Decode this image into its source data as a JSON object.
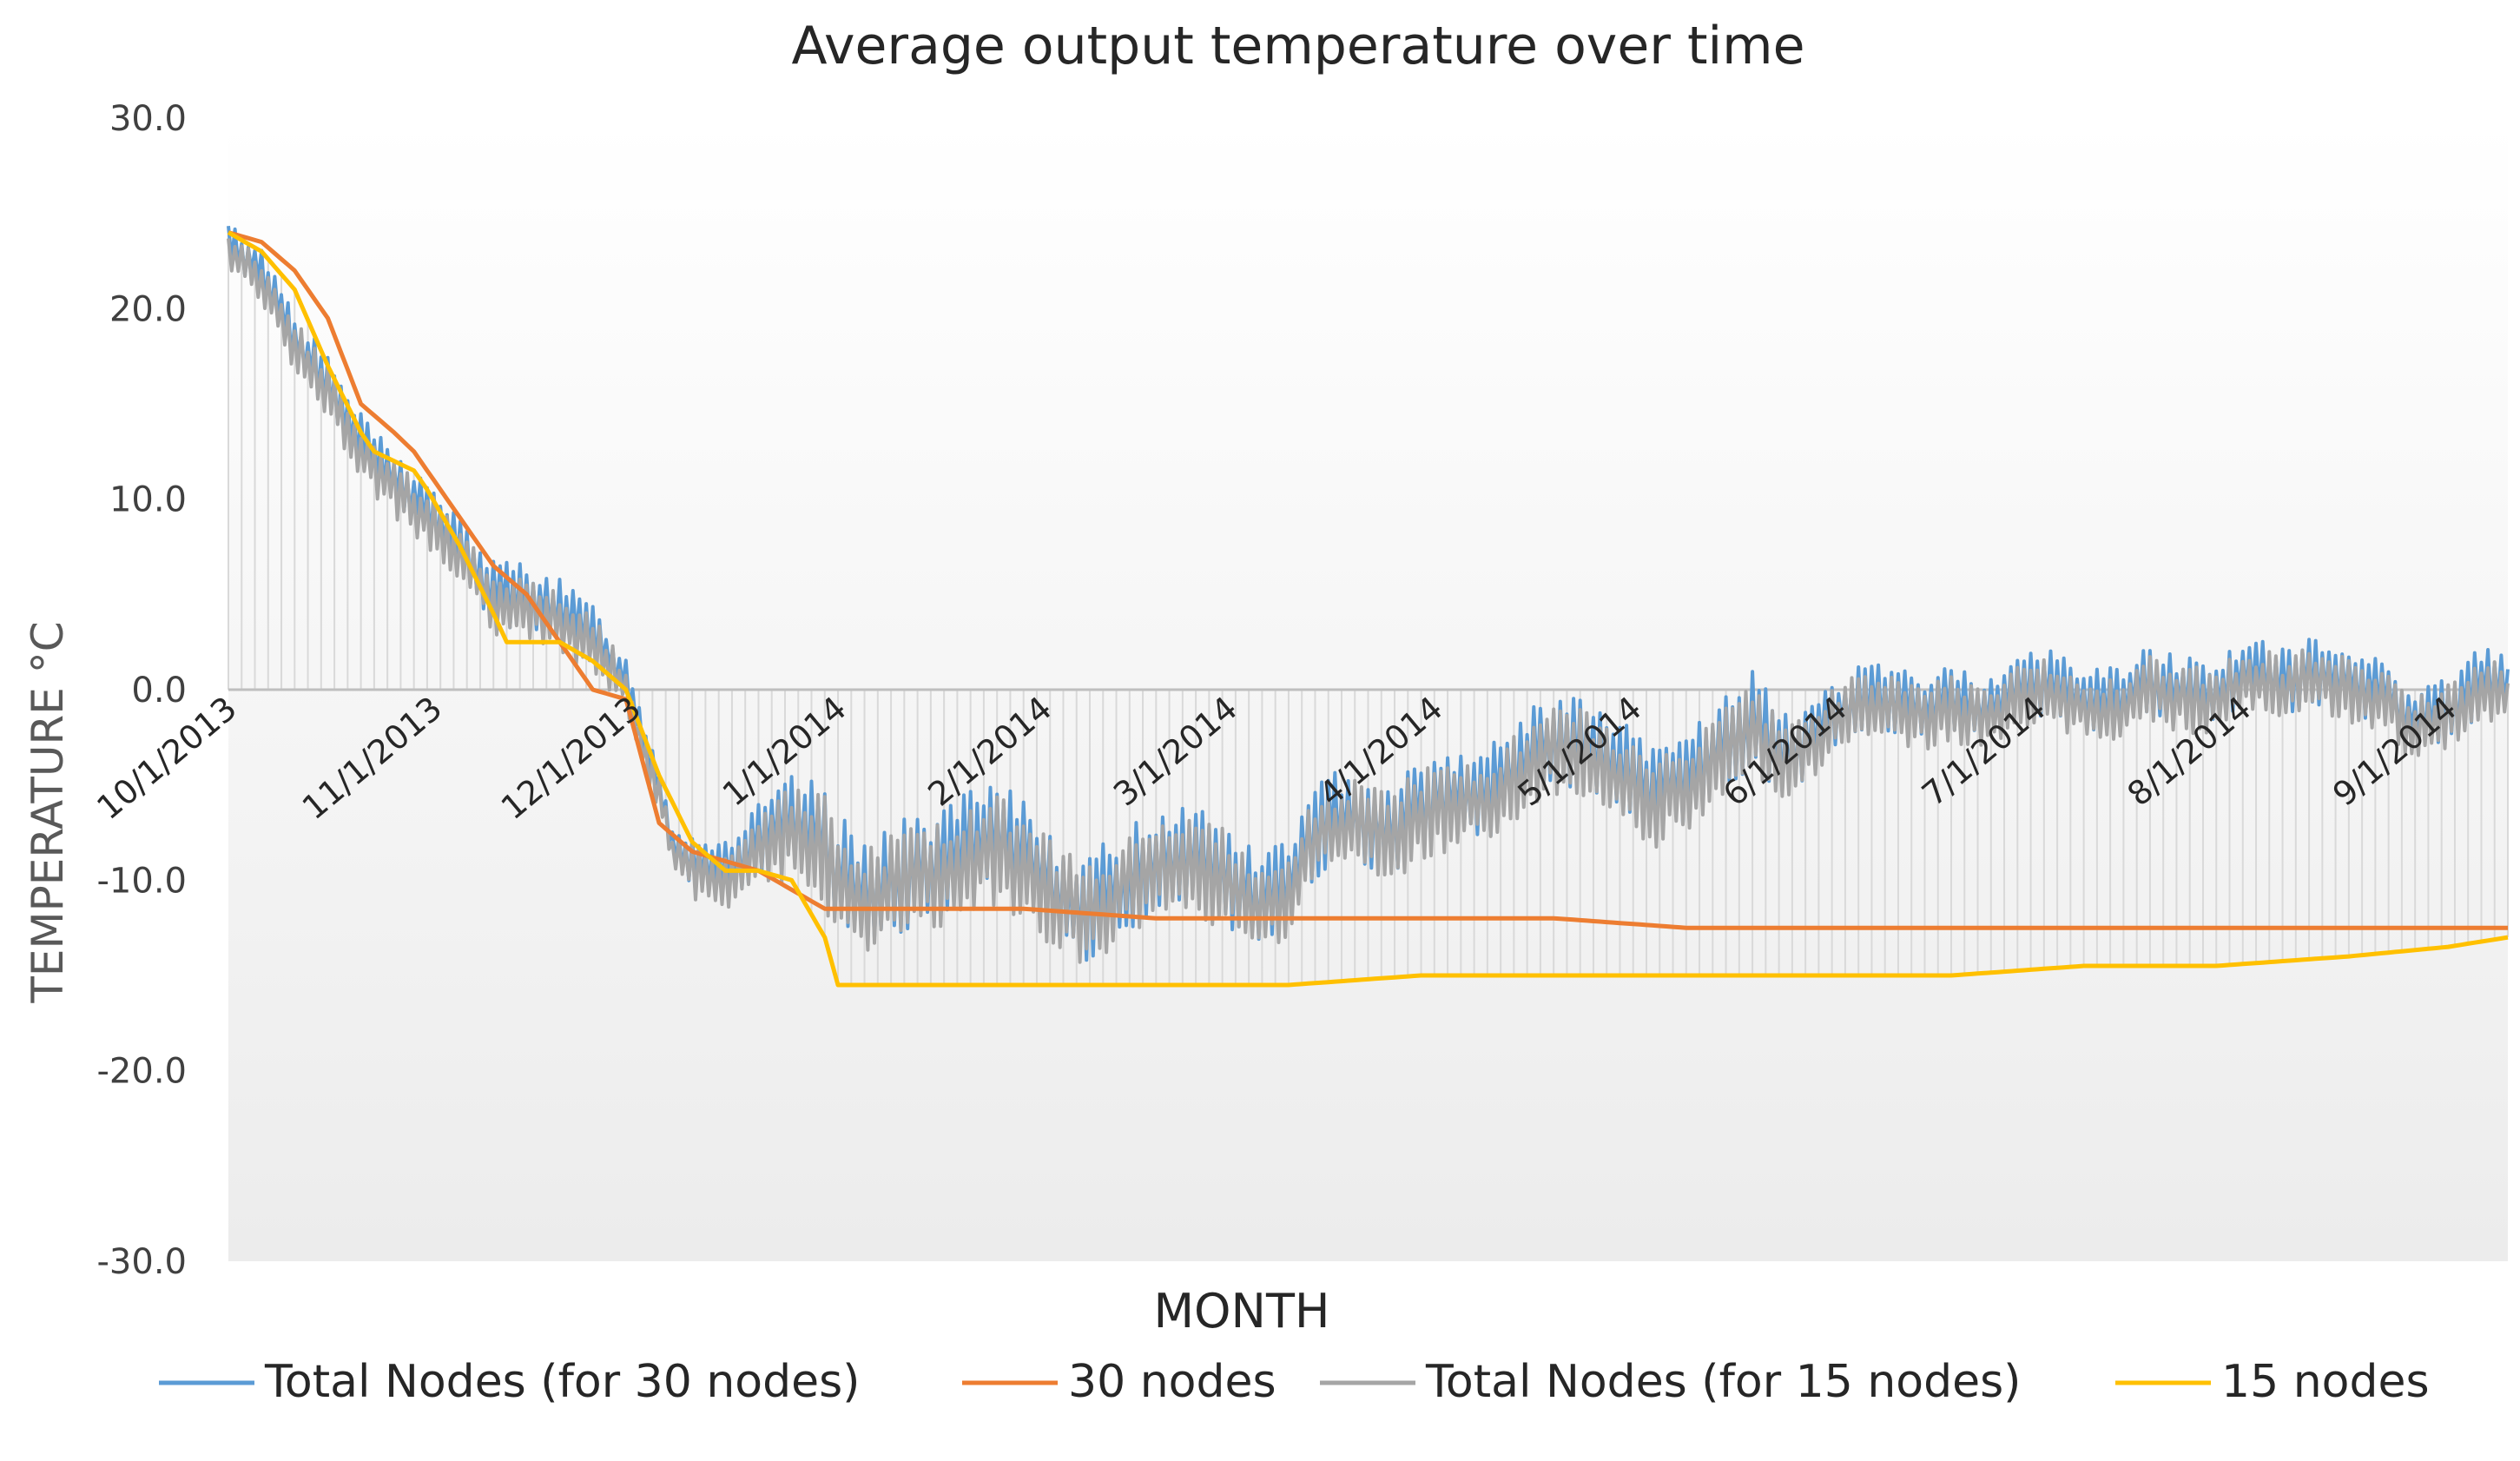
{
  "chart_data": {
    "type": "line",
    "title": "Average output temperature over time",
    "xlabel": "MONTH",
    "ylabel": "TEMPERATURE °C",
    "ylim": [
      -30,
      30
    ],
    "yticks": [
      "30.0",
      "20.0",
      "10.0",
      "0.0",
      "-10.0",
      "-20.0",
      "-30.0"
    ],
    "ytick_values": [
      30,
      20,
      10,
      0,
      -10,
      -20,
      -30
    ],
    "x_range_days": [
      0,
      344
    ],
    "xticks": [
      {
        "label": "10/1/2013",
        "day": 0
      },
      {
        "label": "11/1/2013",
        "day": 31
      },
      {
        "label": "12/1/2013",
        "day": 61
      },
      {
        "label": "1/1/2014",
        "day": 92
      },
      {
        "label": "2/1/2014",
        "day": 123
      },
      {
        "label": "3/1/2014",
        "day": 151
      },
      {
        "label": "4/1/2014",
        "day": 182
      },
      {
        "label": "5/1/2014",
        "day": 212
      },
      {
        "label": "6/1/2014",
        "day": 243
      },
      {
        "label": "7/1/2014",
        "day": 273
      },
      {
        "label": "8/1/2014",
        "day": 304
      },
      {
        "label": "9/1/2014",
        "day": 335
      }
    ],
    "legend_position": "bottom",
    "series": [
      {
        "name": "Total Nodes (for 30 nodes)",
        "color": "#5b9bd5",
        "kind": "noisy",
        "days": [
          0,
          5,
          10,
          15,
          20,
          25,
          30,
          35,
          40,
          45,
          50,
          55,
          60,
          63,
          65,
          67,
          70,
          75,
          80,
          85,
          90,
          92,
          95,
          100,
          105,
          110,
          115,
          120,
          125,
          130,
          135,
          140,
          145,
          150,
          155,
          160,
          165,
          170,
          175,
          180,
          185,
          190,
          195,
          200,
          205,
          210,
          215,
          220,
          225,
          230,
          235,
          240,
          245,
          250,
          255,
          260,
          265,
          270,
          275,
          280,
          285,
          290,
          295,
          300,
          305,
          310,
          315,
          320,
          325,
          330,
          335,
          340,
          344
        ],
        "values": [
          23.5,
          22.0,
          18.5,
          16.0,
          13.0,
          11.0,
          9.5,
          7.5,
          5.0,
          5.0,
          4.0,
          3.0,
          0.5,
          -3.0,
          -5.0,
          -8.0,
          -9.0,
          -9.5,
          -8.0,
          -7.0,
          -8.0,
          -9.5,
          -10.5,
          -10.0,
          -9.5,
          -8.5,
          -8.0,
          -8.5,
          -10.5,
          -11.5,
          -10.0,
          -9.0,
          -8.5,
          -9.5,
          -11.0,
          -10.0,
          -7.0,
          -6.5,
          -7.5,
          -6.0,
          -5.5,
          -5.5,
          -4.0,
          -2.5,
          -3.0,
          -4.0,
          -5.5,
          -4.5,
          -3.0,
          -1.5,
          -3.5,
          -2.0,
          -0.5,
          -0.5,
          -1.0,
          -0.5,
          -1.0,
          0.0,
          0.5,
          -0.5,
          -0.5,
          0.5,
          0.0,
          0.0,
          1.0,
          0.5,
          1.0,
          0.5,
          0.0,
          -1.5,
          -1.0,
          0.5,
          0.0
        ],
        "amplitude": [
          1.0,
          1.2,
          1.5,
          1.5,
          1.5,
          1.5,
          1.5,
          1.5,
          1.8,
          1.8,
          1.8,
          1.5,
          1.2,
          1.2,
          1.0,
          1.0,
          1.5,
          1.8,
          2.0,
          2.5,
          3.0,
          3.0,
          3.0,
          3.0,
          3.0,
          3.0,
          3.0,
          3.0,
          2.8,
          2.8,
          2.8,
          2.8,
          2.8,
          2.8,
          2.5,
          2.5,
          2.5,
          2.5,
          2.5,
          2.5,
          2.5,
          2.5,
          2.5,
          2.5,
          2.5,
          2.5,
          2.5,
          2.5,
          2.5,
          2.5,
          2.2,
          2.0,
          1.8,
          1.8,
          1.8,
          1.8,
          1.8,
          1.8,
          1.8,
          1.8,
          1.8,
          1.8,
          1.8,
          1.8,
          1.8,
          1.8,
          1.8,
          1.8,
          1.8,
          1.8,
          1.8,
          1.8,
          1.8
        ]
      },
      {
        "name": "30 nodes",
        "color": "#ed7d31",
        "kind": "smooth",
        "days": [
          0,
          5,
          10,
          15,
          20,
          25,
          28,
          30,
          35,
          40,
          45,
          50,
          55,
          60,
          65,
          70,
          75,
          80,
          85,
          90,
          92,
          95,
          100,
          120,
          140,
          160,
          180,
          200,
          220,
          240,
          260,
          280,
          300,
          320,
          330,
          335,
          344
        ],
        "values": [
          24.0,
          23.5,
          22.0,
          19.5,
          15.0,
          13.5,
          12.5,
          11.5,
          9.0,
          6.5,
          5.0,
          2.5,
          0.0,
          -0.5,
          -7.0,
          -8.5,
          -9.0,
          -9.5,
          -10.5,
          -11.5,
          -11.5,
          -11.5,
          -11.5,
          -11.5,
          -12.0,
          -12.0,
          -12.0,
          -12.0,
          -12.5,
          -12.5,
          -12.5,
          -12.5,
          -12.5,
          -12.5,
          -12.5,
          -12.5,
          -12.5
        ]
      },
      {
        "name": "Total Nodes (for 15 nodes)",
        "color": "#a5a5a5",
        "kind": "noisy",
        "days": [
          0,
          5,
          10,
          15,
          20,
          25,
          30,
          35,
          40,
          45,
          50,
          55,
          60,
          63,
          65,
          67,
          70,
          75,
          80,
          85,
          90,
          92,
          95,
          100,
          105,
          110,
          115,
          120,
          125,
          130,
          135,
          140,
          145,
          150,
          155,
          160,
          165,
          170,
          175,
          180,
          185,
          190,
          195,
          200,
          205,
          210,
          215,
          220,
          225,
          230,
          235,
          240,
          245,
          250,
          255,
          260,
          265,
          270,
          275,
          280,
          285,
          290,
          295,
          300,
          305,
          310,
          315,
          320,
          325,
          330,
          335,
          340,
          344
        ],
        "values": [
          23.0,
          21.5,
          18.0,
          15.5,
          12.5,
          10.5,
          9.0,
          7.0,
          4.5,
          4.5,
          3.5,
          2.5,
          0.0,
          -3.5,
          -5.5,
          -8.5,
          -9.5,
          -10.0,
          -8.5,
          -7.5,
          -8.5,
          -10.0,
          -11.0,
          -10.5,
          -10.0,
          -9.0,
          -8.5,
          -9.0,
          -11.0,
          -12.0,
          -10.5,
          -9.5,
          -9.0,
          -10.0,
          -11.5,
          -10.5,
          -7.5,
          -7.0,
          -8.0,
          -6.5,
          -6.0,
          -6.0,
          -4.5,
          -3.0,
          -3.5,
          -4.5,
          -6.0,
          -5.0,
          -3.5,
          -2.0,
          -4.0,
          -2.5,
          -1.0,
          -1.0,
          -1.5,
          -1.0,
          -1.5,
          -0.5,
          0.0,
          -1.0,
          -1.0,
          0.0,
          -0.5,
          -0.5,
          0.5,
          0.0,
          0.5,
          0.0,
          -0.5,
          -2.0,
          -1.5,
          0.0,
          -0.5
        ],
        "amplitude": [
          1.0,
          1.2,
          1.5,
          1.5,
          1.5,
          1.5,
          1.5,
          1.5,
          1.8,
          1.8,
          1.8,
          1.5,
          1.2,
          1.2,
          1.0,
          1.0,
          1.5,
          1.8,
          2.0,
          2.5,
          3.0,
          3.0,
          3.0,
          3.0,
          3.0,
          3.0,
          3.0,
          3.0,
          2.8,
          2.8,
          2.8,
          2.8,
          2.8,
          2.8,
          2.5,
          2.5,
          2.5,
          2.5,
          2.5,
          2.5,
          2.5,
          2.5,
          2.5,
          2.5,
          2.5,
          2.5,
          2.5,
          2.5,
          2.5,
          2.5,
          2.2,
          2.0,
          1.8,
          1.8,
          1.8,
          1.8,
          1.8,
          1.8,
          1.8,
          1.8,
          1.8,
          1.8,
          1.8,
          1.8,
          1.8,
          1.8,
          1.8,
          1.8,
          1.8,
          1.8,
          1.8,
          1.8,
          1.8
        ]
      },
      {
        "name": "15 nodes",
        "color": "#ffc000",
        "kind": "smooth",
        "days": [
          0,
          5,
          10,
          15,
          20,
          22,
          25,
          28,
          30,
          35,
          40,
          42,
          45,
          50,
          55,
          60,
          65,
          70,
          75,
          80,
          85,
          90,
          92,
          95,
          100,
          120,
          140,
          160,
          180,
          200,
          220,
          240,
          260,
          280,
          300,
          320,
          335,
          344
        ],
        "values": [
          24.0,
          23.0,
          21.0,
          17.0,
          13.5,
          12.5,
          12.0,
          11.5,
          10.5,
          7.5,
          4.0,
          2.5,
          2.5,
          2.5,
          1.5,
          0.0,
          -4.5,
          -8.0,
          -9.5,
          -9.5,
          -10.0,
          -13.0,
          -15.5,
          -15.5,
          -15.5,
          -15.5,
          -15.5,
          -15.5,
          -15.0,
          -15.0,
          -15.0,
          -15.0,
          -15.0,
          -14.5,
          -14.5,
          -14.0,
          -13.5,
          -13.0
        ]
      }
    ]
  }
}
